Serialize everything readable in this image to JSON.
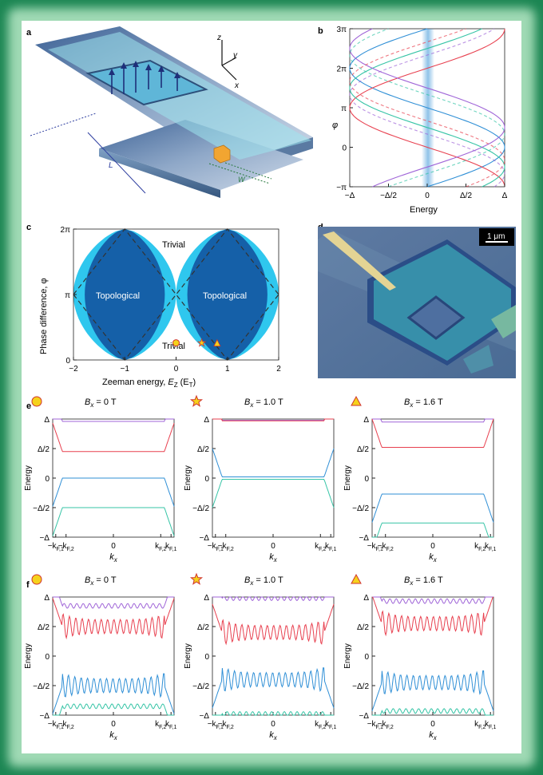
{
  "panels": {
    "a": {
      "letter": "a",
      "axis_z": "z",
      "axis_y": "y",
      "axis_x": "x",
      "length_label": "L",
      "width_label": "W"
    },
    "b": {
      "letter": "b",
      "xlabel": "Energy",
      "ylabel": "φ",
      "xticks": [
        "−Δ",
        "−Δ/2",
        "0",
        "Δ/2",
        "Δ"
      ],
      "yticks": [
        "3π",
        "2π",
        "π",
        "0",
        "−π"
      ]
    },
    "c": {
      "letter": "c",
      "xlabel_main": "Zeeman energy, ",
      "xlabel_var": "E",
      "xlabel_sub": "Z",
      "xlabel_unit": " (E",
      "xlabel_unit_sub": "T",
      "xlabel_close": ")",
      "ylabel": "Phase difference, φ",
      "xticks": [
        "−2",
        "−1",
        "0",
        "1",
        "2"
      ],
      "yticks": [
        "2π",
        "π",
        "0"
      ],
      "region_trivial_top": "Trivial",
      "region_trivial_bottom": "Trivial",
      "region_topo_left": "Topological",
      "region_topo_right": "Topological"
    },
    "d": {
      "letter": "d",
      "scalebar": "1 μm"
    },
    "e": {
      "letter": "e"
    },
    "f": {
      "letter": "f"
    }
  },
  "field_titles": [
    {
      "marker": "circle",
      "prefix": "B",
      "sub": "x",
      "value": " = 0 T"
    },
    {
      "marker": "star",
      "prefix": "B",
      "sub": "x",
      "value": " = 1.0 T"
    },
    {
      "marker": "triangle",
      "prefix": "B",
      "sub": "x",
      "value": " = 1.6 T"
    }
  ],
  "small_plot_axes": {
    "ylabel": "Energy",
    "yticks": [
      "Δ",
      "Δ/2",
      "0",
      "−Δ/2",
      "−Δ"
    ],
    "xticks": [
      "−k",
      "−k",
      "0",
      "k",
      "k"
    ],
    "xtick_subs": [
      "F,1",
      "F,2",
      "",
      "F,2",
      "F,1"
    ],
    "xlabel": "k",
    "xlabel_sub": "x"
  },
  "colors": {
    "purple": "#a066d8",
    "red": "#e8404f",
    "blue": "#2f8fd6",
    "teal": "#36c4a6",
    "topo_dark": "#1560a8",
    "topo_light": "#2fc7ee",
    "frame": "#1c8653"
  }
}
